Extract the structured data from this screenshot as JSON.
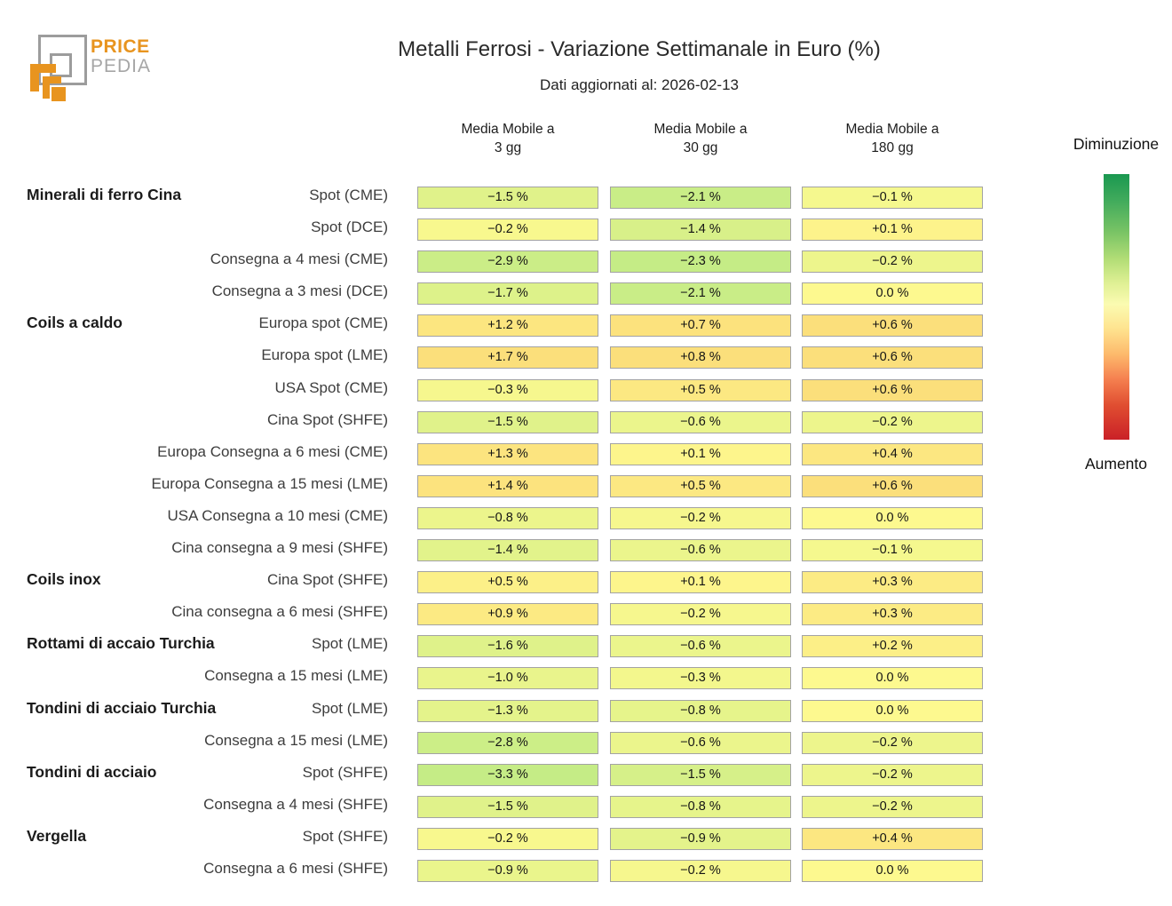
{
  "logo": {
    "price": "PRICE",
    "pedia": "PEDIA",
    "orange": "#e8941f",
    "gray": "#9c9c9c"
  },
  "header": {
    "title": "Metalli Ferrosi - Variazione Settimanale in Euro (%)",
    "subtitle": "Dati aggiornati al: 2026-02-13"
  },
  "legend": {
    "top": "Diminuzione",
    "bottom": "Aumento",
    "gradient": [
      "#1a9850 0%",
      "#41ab5c 10%",
      "#7ac465 22%",
      "#b2dd76 32%",
      "#dff094 41%",
      "#fbfbb1 49%",
      "#fee490 58%",
      "#fdb96b 68%",
      "#f58150 77%",
      "#e04e31 87%",
      "#ca2027 100%"
    ]
  },
  "chart_data": {
    "type": "heatmap",
    "title": "Metalli Ferrosi - Variazione Settimanale in Euro (%)",
    "subtitle": "Dati aggiornati al: 2026-02-13",
    "unit": "%",
    "colorbar": {
      "top_label": "Diminuzione",
      "bottom_label": "Aumento",
      "top_color": "#1a9850",
      "mid_color": "#fbfbb1",
      "bottom_color": "#ca2027"
    },
    "columns": [
      {
        "line1": "Media Mobile a",
        "line2": "3 gg"
      },
      {
        "line1": "Media Mobile a",
        "line2": "30 gg"
      },
      {
        "line1": "Media Mobile a",
        "line2": "180 gg"
      }
    ],
    "rows": [
      {
        "group": "Minerali di ferro Cina",
        "label": "Spot (CME)",
        "values": [
          -1.5,
          -2.1,
          -0.1
        ],
        "display": [
          "−1.5 %",
          "−2.1 %",
          "−0.1 %"
        ],
        "colors": [
          "#e0f28a",
          "#c9ed87",
          "#f5f88e"
        ]
      },
      {
        "group": "",
        "label": "Spot (DCE)",
        "values": [
          -0.2,
          -1.4,
          0.1
        ],
        "display": [
          "−0.2 %",
          "−1.4 %",
          "+0.1 %"
        ],
        "colors": [
          "#f8f88e",
          "#d8f089",
          "#fdf38b"
        ]
      },
      {
        "group": "",
        "label": "Consegna a 4 mesi (CME)",
        "values": [
          -2.9,
          -2.3,
          -0.2
        ],
        "display": [
          "−2.9 %",
          "−2.3 %",
          "−0.2 %"
        ],
        "colors": [
          "#cbed87",
          "#c5ec86",
          "#edf58c"
        ]
      },
      {
        "group": "",
        "label": "Consegna a 3 mesi (DCE)",
        "values": [
          -1.7,
          -2.1,
          0.0
        ],
        "display": [
          "−1.7 %",
          "−2.1 %",
          "0.0 %"
        ],
        "colors": [
          "#ddf28a",
          "#c9ed87",
          "#fdf98f"
        ]
      },
      {
        "group": "Coils a caldo",
        "label": "Europa spot (CME)",
        "values": [
          1.2,
          0.7,
          0.6
        ],
        "display": [
          "+1.2 %",
          "+0.7 %",
          "+0.6 %"
        ],
        "colors": [
          "#fce680",
          "#fce27d",
          "#fbdf7b"
        ]
      },
      {
        "group": "",
        "label": "Europa spot (LME)",
        "values": [
          1.7,
          0.8,
          0.6
        ],
        "display": [
          "+1.7 %",
          "+0.8 %",
          "+0.6 %"
        ],
        "colors": [
          "#fbdf7b",
          "#fbdf7b",
          "#fbdf7b"
        ]
      },
      {
        "group": "",
        "label": "USA Spot (CME)",
        "values": [
          -0.3,
          0.5,
          0.6
        ],
        "display": [
          "−0.3 %",
          "+0.5 %",
          "+0.6 %"
        ],
        "colors": [
          "#f6f78e",
          "#fce882",
          "#fbdf7b"
        ]
      },
      {
        "group": "",
        "label": "Cina Spot (SHFE)",
        "values": [
          -1.5,
          -0.6,
          -0.2
        ],
        "display": [
          "−1.5 %",
          "−0.6 %",
          "−0.2 %"
        ],
        "colors": [
          "#e0f28a",
          "#ebf58c",
          "#edf58c"
        ]
      },
      {
        "group": "",
        "label": "Europa Consegna a 6 mesi (CME)",
        "values": [
          1.3,
          0.1,
          0.4
        ],
        "display": [
          "+1.3 %",
          "+0.1 %",
          "+0.4 %"
        ],
        "colors": [
          "#fce47f",
          "#fdf58c",
          "#fce781"
        ]
      },
      {
        "group": "",
        "label": "Europa Consegna a 15 mesi (LME)",
        "values": [
          1.4,
          0.5,
          0.6
        ],
        "display": [
          "+1.4 %",
          "+0.5 %",
          "+0.6 %"
        ],
        "colors": [
          "#fce37e",
          "#fce882",
          "#fbdf7b"
        ]
      },
      {
        "group": "",
        "label": "USA Consegna a 10 mesi (CME)",
        "values": [
          -0.8,
          -0.2,
          0.0
        ],
        "display": [
          "−0.8 %",
          "−0.2 %",
          "0.0 %"
        ],
        "colors": [
          "#ecf58c",
          "#f6f78e",
          "#fdf98f"
        ]
      },
      {
        "group": "",
        "label": "Cina consegna a 9 mesi (SHFE)",
        "values": [
          -1.4,
          -0.6,
          -0.1
        ],
        "display": [
          "−1.4 %",
          "−0.6 %",
          "−0.1 %"
        ],
        "colors": [
          "#e2f38b",
          "#ebf58c",
          "#f5f88e"
        ]
      },
      {
        "group": "Coils inox",
        "label": "Cina Spot (SHFE)",
        "values": [
          0.5,
          0.1,
          0.3
        ],
        "display": [
          "+0.5 %",
          "+0.1 %",
          "+0.3 %"
        ],
        "colors": [
          "#fcf088",
          "#fdf58c",
          "#fceb84"
        ]
      },
      {
        "group": "",
        "label": "Cina consegna a 6 mesi (SHFE)",
        "values": [
          0.9,
          -0.2,
          0.3
        ],
        "display": [
          "+0.9 %",
          "−0.2 %",
          "+0.3 %"
        ],
        "colors": [
          "#fcea83",
          "#f6f78e",
          "#fceb84"
        ]
      },
      {
        "group": "Rottami di accaio Turchia",
        "label": "Spot (LME)",
        "values": [
          -1.6,
          -0.6,
          0.2
        ],
        "display": [
          "−1.6 %",
          "−0.6 %",
          "+0.2 %"
        ],
        "colors": [
          "#dff28a",
          "#ebf58c",
          "#fcef87"
        ]
      },
      {
        "group": "",
        "label": "Consegna a 15 mesi (LME)",
        "values": [
          -1.0,
          -0.3,
          0.0
        ],
        "display": [
          "−1.0 %",
          "−0.3 %",
          "0.0 %"
        ],
        "colors": [
          "#e9f48c",
          "#f3f78d",
          "#fdf98f"
        ]
      },
      {
        "group": "Tondini di acciaio Turchia",
        "label": "Spot (LME)",
        "values": [
          -1.3,
          -0.8,
          0.0
        ],
        "display": [
          "−1.3 %",
          "−0.8 %",
          "0.0 %"
        ],
        "colors": [
          "#e4f38b",
          "#e6f48b",
          "#fdf98f"
        ]
      },
      {
        "group": "",
        "label": "Consegna a 15 mesi (LME)",
        "values": [
          -2.8,
          -0.6,
          -0.2
        ],
        "display": [
          "−2.8 %",
          "−0.6 %",
          "−0.2 %"
        ],
        "colors": [
          "#ccee87",
          "#ebf58c",
          "#edf58c"
        ]
      },
      {
        "group": "Tondini di acciaio",
        "label": "Spot (SHFE)",
        "values": [
          -3.3,
          -1.5,
          -0.2
        ],
        "display": [
          "−3.3 %",
          "−1.5 %",
          "−0.2 %"
        ],
        "colors": [
          "#c5ec86",
          "#d6f089",
          "#edf58c"
        ]
      },
      {
        "group": "",
        "label": "Consegna a 4 mesi (SHFE)",
        "values": [
          -1.5,
          -0.8,
          -0.2
        ],
        "display": [
          "−1.5 %",
          "−0.8 %",
          "−0.2 %"
        ],
        "colors": [
          "#e0f28a",
          "#e6f48b",
          "#edf58c"
        ]
      },
      {
        "group": "Vergella",
        "label": "Spot (SHFE)",
        "values": [
          -0.2,
          -0.9,
          0.4
        ],
        "display": [
          "−0.2 %",
          "−0.9 %",
          "+0.4 %"
        ],
        "colors": [
          "#f8f88e",
          "#e4f38b",
          "#fce781"
        ]
      },
      {
        "group": "",
        "label": "Consegna a 6 mesi (SHFE)",
        "values": [
          -0.9,
          -0.2,
          0.0
        ],
        "display": [
          "−0.9 %",
          "−0.2 %",
          "0.0 %"
        ],
        "colors": [
          "#eaf58c",
          "#f6f78e",
          "#fdf98f"
        ]
      }
    ]
  }
}
